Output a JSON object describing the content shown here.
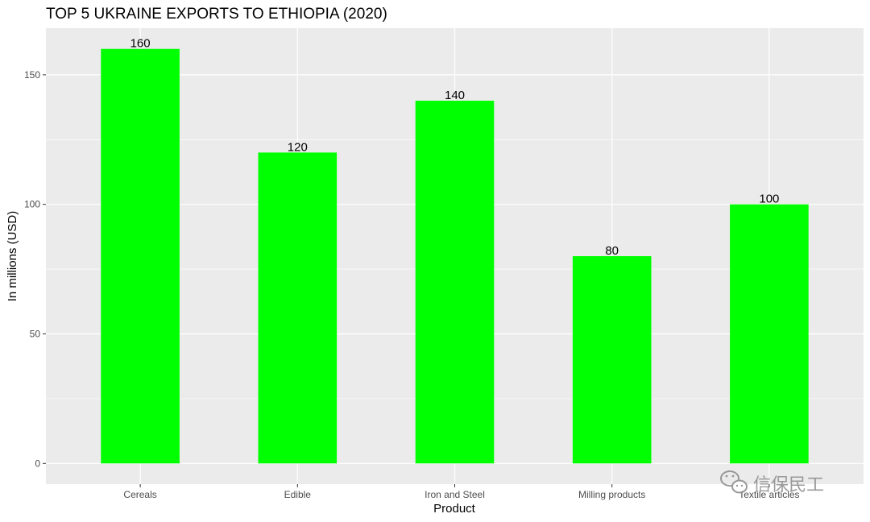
{
  "chart_data": {
    "type": "bar",
    "title": "TOP 5 UKRAINE EXPORTS TO ETHIOPIA (2020)",
    "xlabel": "Product",
    "ylabel": "In millions (USD)",
    "categories": [
      "Cereals",
      "Edible",
      "Iron and Steel",
      "Milling products",
      "Textile articles"
    ],
    "values": [
      160,
      120,
      140,
      80,
      100
    ],
    "data_labels": [
      "160",
      "120",
      "140",
      "80",
      "100"
    ],
    "ylim": [
      -8,
      168
    ],
    "yticks": [
      0,
      50,
      100,
      150
    ],
    "ytick_labels": [
      "0",
      "50",
      "100",
      "150"
    ],
    "grid": true,
    "legend": "none",
    "colors": {
      "bar": "#00ff00",
      "panel_background": "#ebebeb",
      "grid": "#ffffff"
    }
  },
  "watermark": {
    "text": "信保民工",
    "icon": "wechat-logo-icon"
  }
}
